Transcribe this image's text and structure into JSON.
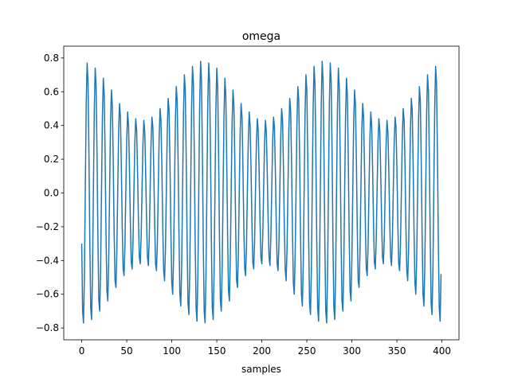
{
  "chart_data": {
    "type": "line",
    "title": "omega",
    "x_label": "samples",
    "color": "#1f77b4",
    "x": [
      0,
      1,
      2,
      3,
      4,
      5,
      6,
      7,
      8,
      9,
      10,
      11,
      12,
      13,
      14,
      15,
      16,
      17,
      18,
      19,
      20,
      21,
      22,
      23,
      24,
      25,
      26,
      27,
      28,
      29,
      30,
      31,
      32,
      33,
      34,
      35,
      36,
      37,
      38,
      39,
      40,
      41,
      42,
      43,
      44,
      45,
      46,
      47,
      48,
      49,
      50,
      51,
      52,
      53,
      54,
      55,
      56,
      57,
      58,
      59,
      60,
      61,
      62,
      63,
      64,
      65,
      66,
      67,
      68,
      69,
      70,
      71,
      72,
      73,
      74,
      75,
      76,
      77,
      78,
      79,
      80,
      81,
      82,
      83,
      84,
      85,
      86,
      87,
      88,
      89,
      90,
      91,
      92,
      93,
      94,
      95,
      96,
      97,
      98,
      99,
      100,
      101,
      102,
      103,
      104,
      105,
      106,
      107,
      108,
      109,
      110,
      111,
      112,
      113,
      114,
      115,
      116,
      117,
      118,
      119,
      120,
      121,
      122,
      123,
      124,
      125,
      126,
      127,
      128,
      129,
      130,
      131,
      132,
      133,
      134,
      135,
      136,
      137,
      138,
      139,
      140,
      141,
      142,
      143,
      144,
      145,
      146,
      147,
      148,
      149,
      150,
      151,
      152,
      153,
      154,
      155,
      156,
      157,
      158,
      159,
      160,
      161,
      162,
      163,
      164,
      165,
      166,
      167,
      168,
      169,
      170,
      171,
      172,
      173,
      174,
      175,
      176,
      177,
      178,
      179,
      180,
      181,
      182,
      183,
      184,
      185,
      186,
      187,
      188,
      189,
      190,
      191,
      192,
      193,
      194,
      195,
      196,
      197,
      198,
      199,
      200,
      201,
      202,
      203,
      204,
      205,
      206,
      207,
      208,
      209,
      210,
      211,
      212,
      213,
      214,
      215,
      216,
      217,
      218,
      219,
      220,
      221,
      222,
      223,
      224,
      225,
      226,
      227,
      228,
      229,
      230,
      231,
      232,
      233,
      234,
      235,
      236,
      237,
      238,
      239,
      240,
      241,
      242,
      243,
      244,
      245,
      246,
      247,
      248,
      249,
      250,
      251,
      252,
      253,
      254,
      255,
      256,
      257,
      258,
      259,
      260,
      261,
      262,
      263,
      264,
      265,
      266,
      267,
      268,
      269,
      270,
      271,
      272,
      273,
      274,
      275,
      276,
      277,
      278,
      279,
      280,
      281,
      282,
      283,
      284,
      285,
      286,
      287,
      288,
      289,
      290,
      291,
      292,
      293,
      294,
      295,
      296,
      297,
      298,
      299,
      300,
      301,
      302,
      303,
      304,
      305,
      306,
      307,
      308,
      309,
      310,
      311,
      312,
      313,
      314,
      315,
      316,
      317,
      318,
      319,
      320,
      321,
      322,
      323,
      324,
      325,
      326,
      327,
      328,
      329,
      330,
      331,
      332,
      333,
      334,
      335,
      336,
      337,
      338,
      339,
      340,
      341,
      342,
      343,
      344,
      345,
      346,
      347,
      348,
      349,
      350,
      351,
      352,
      353,
      354,
      355,
      356,
      357,
      358,
      359,
      360,
      361,
      362,
      363,
      364,
      365,
      366,
      367,
      368,
      369,
      370,
      371,
      372,
      373,
      374,
      375,
      376,
      377,
      378,
      379,
      380,
      381,
      382,
      383,
      384,
      385,
      386,
      387,
      388,
      389,
      390,
      391,
      392,
      393,
      394,
      395,
      396,
      397,
      398,
      399
    ],
    "values": [
      -0.3,
      -0.7,
      -0.77,
      -0.49,
      0.03,
      0.53,
      0.77,
      0.66,
      0.24,
      -0.29,
      -0.68,
      -0.75,
      -0.47,
      0.03,
      0.5,
      0.74,
      0.63,
      0.23,
      -0.27,
      -0.64,
      -0.7,
      -0.44,
      0.02,
      0.46,
      0.68,
      0.58,
      0.21,
      -0.25,
      -0.58,
      -0.64,
      -0.39,
      0.02,
      0.42,
      0.61,
      0.52,
      0.19,
      -0.22,
      -0.52,
      -0.56,
      -0.35,
      0.02,
      0.37,
      0.53,
      0.45,
      0.16,
      -0.2,
      -0.45,
      -0.49,
      -0.31,
      0.02,
      0.32,
      0.48,
      0.4,
      0.15,
      -0.17,
      -0.41,
      -0.45,
      -0.28,
      0.02,
      0.3,
      0.44,
      0.37,
      0.13,
      -0.16,
      -0.38,
      -0.42,
      -0.26,
      0.02,
      0.29,
      0.43,
      0.36,
      0.13,
      -0.16,
      -0.38,
      -0.43,
      -0.27,
      0.02,
      0.3,
      0.45,
      0.39,
      0.14,
      -0.17,
      -0.42,
      -0.46,
      -0.3,
      0.02,
      0.33,
      0.5,
      0.43,
      0.16,
      -0.2,
      -0.46,
      -0.52,
      -0.33,
      0.02,
      0.37,
      0.56,
      0.49,
      0.18,
      -0.22,
      -0.53,
      -0.6,
      -0.38,
      0.02,
      0.42,
      0.63,
      0.55,
      0.2,
      -0.25,
      -0.6,
      -0.67,
      -0.43,
      0.02,
      0.47,
      0.7,
      0.61,
      0.22,
      -0.27,
      -0.65,
      -0.72,
      -0.46,
      0.03,
      0.51,
      0.75,
      0.65,
      0.24,
      -0.29,
      -0.68,
      -0.76,
      -0.48,
      0.03,
      0.53,
      0.78,
      0.67,
      0.24,
      -0.3,
      -0.7,
      -0.77,
      -0.49,
      0.03,
      0.53,
      0.77,
      0.66,
      0.24,
      -0.29,
      -0.68,
      -0.75,
      -0.47,
      0.03,
      0.5,
      0.74,
      0.63,
      0.23,
      -0.27,
      -0.64,
      -0.7,
      -0.44,
      0.02,
      0.46,
      0.68,
      0.58,
      0.21,
      -0.25,
      -0.58,
      -0.64,
      -0.39,
      0.02,
      0.42,
      0.61,
      0.52,
      0.19,
      -0.22,
      -0.52,
      -0.56,
      -0.35,
      0.02,
      0.37,
      0.53,
      0.45,
      0.16,
      -0.2,
      -0.45,
      -0.49,
      -0.31,
      0.02,
      0.32,
      0.48,
      0.4,
      0.15,
      -0.17,
      -0.41,
      -0.45,
      -0.28,
      0.02,
      0.3,
      0.44,
      0.37,
      0.13,
      -0.16,
      -0.38,
      -0.42,
      -0.26,
      0.02,
      0.29,
      0.43,
      0.36,
      0.13,
      -0.16,
      -0.38,
      -0.43,
      -0.27,
      0.02,
      0.3,
      0.45,
      0.39,
      0.14,
      -0.17,
      -0.42,
      -0.46,
      -0.3,
      0.02,
      0.33,
      0.5,
      0.43,
      0.16,
      -0.2,
      -0.46,
      -0.52,
      -0.33,
      0.02,
      0.37,
      0.56,
      0.49,
      0.18,
      -0.22,
      -0.53,
      -0.6,
      -0.38,
      0.02,
      0.42,
      0.63,
      0.55,
      0.2,
      -0.25,
      -0.6,
      -0.67,
      -0.43,
      0.02,
      0.47,
      0.7,
      0.61,
      0.22,
      -0.27,
      -0.65,
      -0.72,
      -0.46,
      0.03,
      0.51,
      0.75,
      0.65,
      0.24,
      -0.29,
      -0.68,
      -0.76,
      -0.48,
      0.03,
      0.53,
      0.78,
      0.67,
      0.24,
      -0.3,
      -0.7,
      -0.77,
      -0.49,
      0.03,
      0.53,
      0.77,
      0.66,
      0.24,
      -0.29,
      -0.68,
      -0.75,
      -0.47,
      0.03,
      0.5,
      0.74,
      0.63,
      0.23,
      -0.27,
      -0.64,
      -0.7,
      -0.44,
      0.02,
      0.46,
      0.68,
      0.58,
      0.21,
      -0.25,
      -0.58,
      -0.64,
      -0.39,
      0.02,
      0.42,
      0.61,
      0.52,
      0.19,
      -0.22,
      -0.52,
      -0.56,
      -0.35,
      0.02,
      0.37,
      0.53,
      0.45,
      0.16,
      -0.2,
      -0.45,
      -0.49,
      -0.31,
      0.02,
      0.32,
      0.48,
      0.4,
      0.15,
      -0.17,
      -0.41,
      -0.45,
      -0.28,
      0.02,
      0.3,
      0.44,
      0.37,
      0.13,
      -0.16,
      -0.38,
      -0.42,
      -0.26,
      0.02,
      0.29,
      0.43,
      0.36,
      0.13,
      -0.16,
      -0.38,
      -0.43,
      -0.27,
      0.02,
      0.3,
      0.45,
      0.39,
      0.14,
      -0.17,
      -0.42,
      -0.46,
      -0.3,
      0.02,
      0.33,
      0.5,
      0.43,
      0.16,
      -0.2,
      -0.46,
      -0.52,
      -0.33,
      0.02,
      0.37,
      0.56,
      0.49,
      0.18,
      -0.22,
      -0.53,
      -0.6,
      -0.38,
      0.02,
      0.42,
      0.63,
      0.55,
      0.2,
      -0.25,
      -0.6,
      -0.67,
      -0.43,
      0.02,
      0.47,
      0.7,
      0.61,
      0.22,
      -0.27,
      -0.65,
      -0.72,
      -0.46,
      0.03,
      0.51,
      0.75,
      0.65,
      0.24,
      -0.29,
      -0.68,
      -0.76,
      -0.48
    ],
    "xlim": [
      -19.95,
      418.95
    ],
    "xticks": [
      0,
      50,
      100,
      150,
      200,
      250,
      300,
      350,
      400
    ],
    "ylim": [
      -0.87,
      0.87
    ],
    "yticks": [
      {
        "value": -0.8,
        "label": "−0.8"
      },
      {
        "value": -0.6,
        "label": "−0.6"
      },
      {
        "value": -0.4,
        "label": "−0.4"
      },
      {
        "value": -0.2,
        "label": "−0.2"
      },
      {
        "value": 0,
        "label": "0.0"
      },
      0.2,
      0.4,
      0.6,
      0.8
    ],
    "grid": false
  }
}
